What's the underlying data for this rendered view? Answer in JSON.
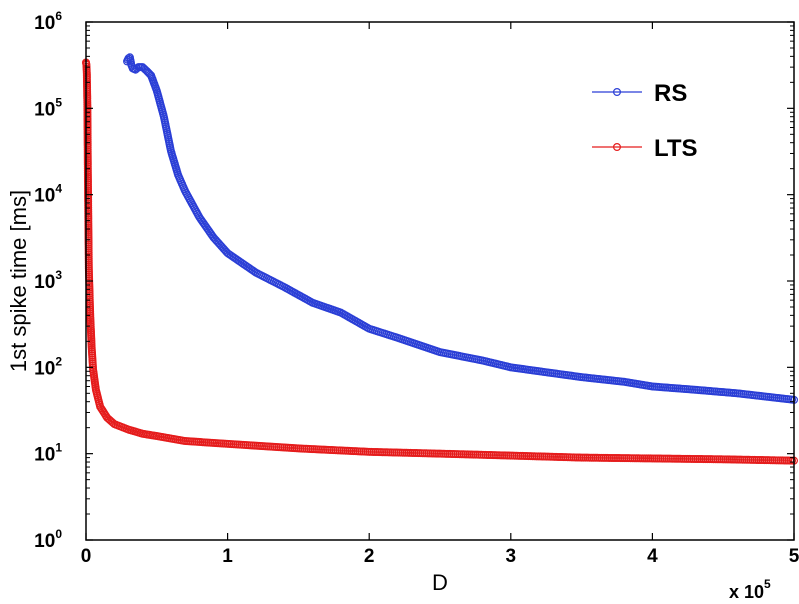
{
  "chart_data": {
    "type": "line",
    "title": "",
    "xlabel": "D",
    "ylabel": "1st spike time [ms]",
    "x_multiplier": {
      "base": "x 10",
      "exponent": "5"
    },
    "xlim": [
      0,
      5
    ],
    "ylim": [
      1,
      1000000
    ],
    "y_scale": "log",
    "grid": false,
    "legend_position": "top-right",
    "x_ticks": [
      "0",
      "1",
      "2",
      "3",
      "4",
      "5"
    ],
    "y_ticks": [
      {
        "value": 1,
        "base": "10",
        "exp": "0"
      },
      {
        "value": 10,
        "base": "10",
        "exp": "1"
      },
      {
        "value": 100,
        "base": "10",
        "exp": "2"
      },
      {
        "value": 1000,
        "base": "10",
        "exp": "3"
      },
      {
        "value": 10000,
        "base": "10",
        "exp": "4"
      },
      {
        "value": 100000,
        "base": "10",
        "exp": "5"
      },
      {
        "value": 1000000,
        "base": "10",
        "exp": "6"
      }
    ],
    "series": [
      {
        "name": "RS",
        "color": "#2b3fd6",
        "marker": "circle",
        "x": [
          0.29,
          0.3,
          0.31,
          0.32,
          0.33,
          0.35,
          0.37,
          0.4,
          0.43,
          0.46,
          0.5,
          0.55,
          0.6,
          0.65,
          0.7,
          0.8,
          0.9,
          1.0,
          1.2,
          1.4,
          1.6,
          1.8,
          2.0,
          2.2,
          2.5,
          2.8,
          3.0,
          3.2,
          3.5,
          3.8,
          4.0,
          4.3,
          4.6,
          5.0
        ],
        "y": [
          350000,
          380000,
          390000,
          320000,
          290000,
          280000,
          300000,
          300000,
          270000,
          240000,
          160000,
          80000,
          32000,
          17000,
          11000,
          5500,
          3200,
          2100,
          1250,
          850,
          560,
          430,
          280,
          220,
          150,
          120,
          100,
          90,
          77,
          68,
          60,
          55,
          50,
          42
        ]
      },
      {
        "name": "LTS",
        "color": "#e51c1c",
        "marker": "circle",
        "x": [
          0.0,
          0.003,
          0.006,
          0.01,
          0.013,
          0.017,
          0.02,
          0.03,
          0.04,
          0.05,
          0.07,
          0.1,
          0.15,
          0.2,
          0.3,
          0.4,
          0.5,
          0.7,
          1.0,
          1.5,
          2.0,
          2.5,
          3.0,
          3.5,
          4.0,
          4.5,
          5.0
        ],
        "y": [
          340000,
          320000,
          250000,
          100000,
          20000,
          4000,
          1400,
          400,
          170,
          95,
          55,
          35,
          26,
          22,
          19,
          17,
          16,
          14,
          13,
          11.5,
          10.5,
          10,
          9.5,
          9,
          8.8,
          8.6,
          8.3
        ]
      }
    ]
  }
}
